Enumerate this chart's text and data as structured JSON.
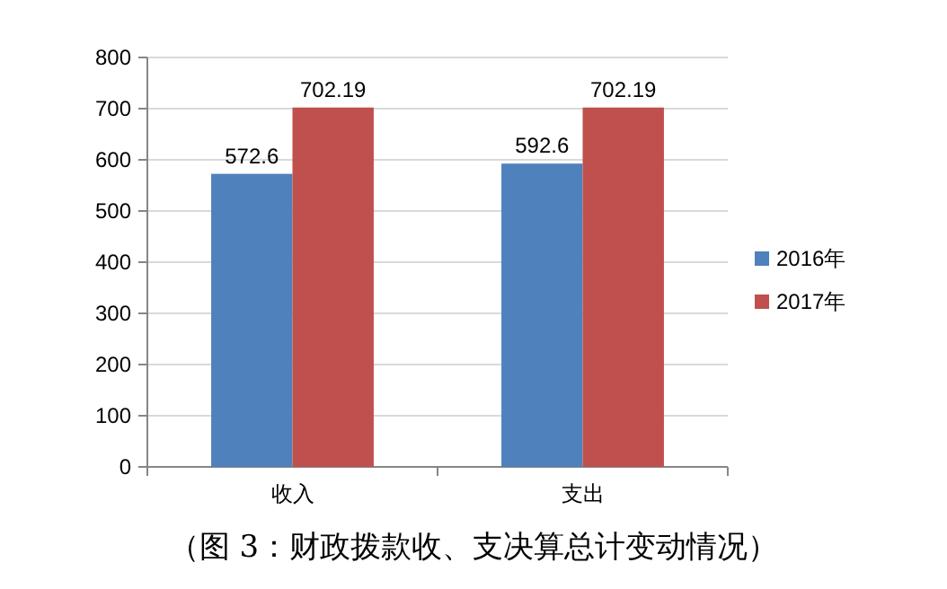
{
  "chart_data": {
    "type": "bar",
    "categories": [
      "收入",
      "支出"
    ],
    "series": [
      {
        "name": "2016年",
        "color": "#4f81bd",
        "values": [
          572.6,
          592.6
        ]
      },
      {
        "name": "2017年",
        "color": "#c0504d",
        "values": [
          702.19,
          702.19
        ]
      }
    ],
    "ylim": [
      0,
      800
    ],
    "yticks": [
      0,
      100,
      200,
      300,
      400,
      500,
      600,
      700,
      800
    ],
    "grid": "y",
    "legend": "right",
    "data_labels": true,
    "annotations": [
      "（图 3：财政拨款收、支决算总计变动情况）"
    ]
  }
}
